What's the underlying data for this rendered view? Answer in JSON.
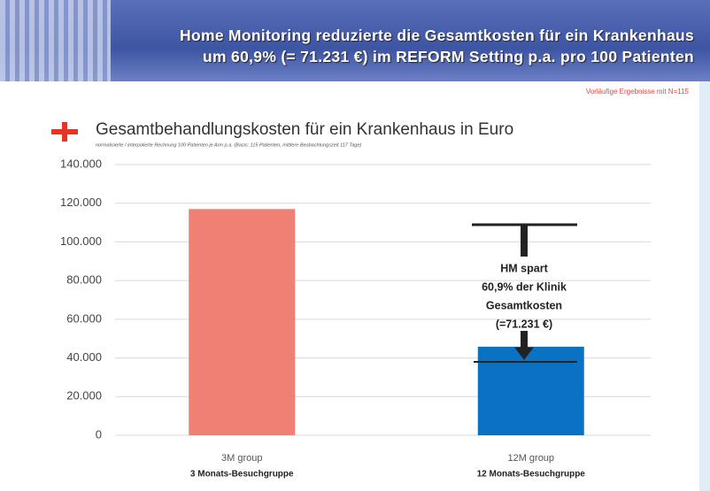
{
  "header": {
    "line1": "Home Monitoring reduzierte die Gesamtkosten für ein Krankenhaus",
    "line2": "um 60,9% (= 71.231 €) im REFORM Setting p.a. pro 100 Patienten"
  },
  "note": "Vorläufige Ergebnisse mit N=115",
  "chart_data": {
    "type": "bar",
    "title": "Gesamtbehandlungskosten für ein Krankenhaus in Euro",
    "subtitle": "normalisierte / interpolierte Rechnung 100 Patienten je Arm p.a. (Basis: 115 Patienten, mittlere Beobachtungszeit 117 Tage)",
    "categories": [
      "3M group",
      "12M group"
    ],
    "category_descriptions": [
      "3 Monats-Besuchgruppe",
      "12 Monats-Besuchgruppe"
    ],
    "values": [
      117000,
      45800
    ],
    "colors": [
      "#f07f74",
      "#0a72c2"
    ],
    "ylim": [
      0,
      140000
    ],
    "yticks": [
      0,
      {
        "value": 20000,
        "label": "20.000"
      },
      {
        "value": 40000,
        "label": "40.000"
      },
      {
        "value": 60000,
        "label": "60.000"
      },
      {
        "value": 80000,
        "label": "80.000"
      },
      {
        "value": 100000,
        "label": "100.000"
      },
      {
        "value": 120000,
        "label": "120.000"
      },
      {
        "value": 140000,
        "label": "140.000"
      }
    ],
    "grid": true,
    "annotation": [
      "HM spart",
      "60,9% der Klinik",
      "Gesamtkosten",
      "(=71.231 €)"
    ]
  }
}
